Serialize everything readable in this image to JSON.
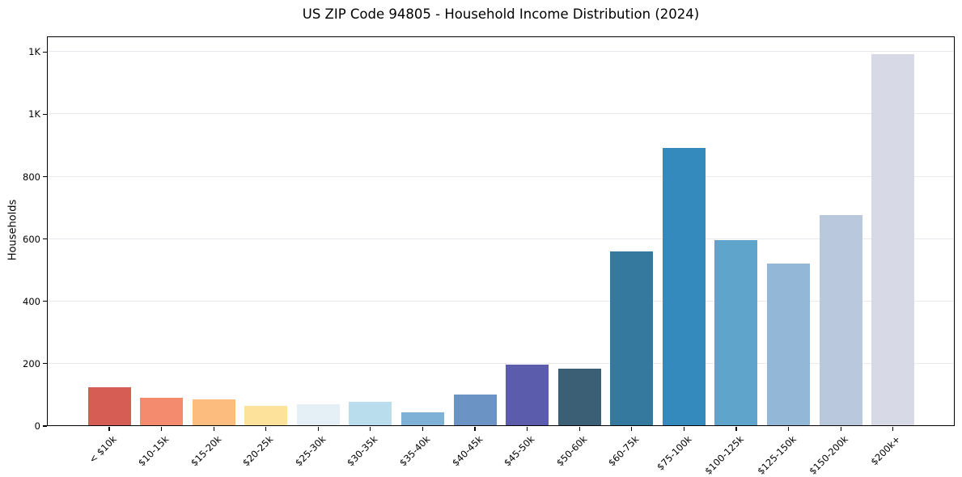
{
  "chart_data": {
    "type": "bar",
    "title": "US ZIP Code 94805 - Household Income Distribution (2024)",
    "xlabel": "",
    "ylabel": "Households",
    "categories": [
      "< $10k",
      "$10-15k",
      "$15-20k",
      "$20-25k",
      "$25-30k",
      "$30-35k",
      "$35-40k",
      "$40-45k",
      "$45-50k",
      "$50-60k",
      "$60-75k",
      "$75-100k",
      "$100-125k",
      "$125-150k",
      "$150-200k",
      "$200k+"
    ],
    "values": [
      125,
      92,
      85,
      65,
      71,
      79,
      43,
      100,
      197,
      185,
      560,
      893,
      597,
      521,
      677,
      1193
    ],
    "bar_colors": [
      "#d65d54",
      "#f48a6e",
      "#fbbc7e",
      "#fde29b",
      "#e4f0f6",
      "#badded",
      "#7fb0d5",
      "#6b93c4",
      "#5c5cac",
      "#3b5f75",
      "#36799f",
      "#3489bd",
      "#5fa4cb",
      "#93b8d7",
      "#b9c8dd",
      "#d8d9e6"
    ],
    "ylim": [
      0,
      1250
    ],
    "yticks": {
      "values": [
        0,
        200,
        400,
        600,
        800,
        1000,
        1200
      ],
      "labels": [
        "0",
        "200",
        "400",
        "600",
        "800",
        "1K",
        "1K"
      ]
    },
    "grid": "horizontal-only",
    "legend": "none",
    "colors": {
      "background": "#ffffff",
      "axis": "#000000",
      "gridline": "#e9e9ef",
      "text": "#000000"
    }
  }
}
